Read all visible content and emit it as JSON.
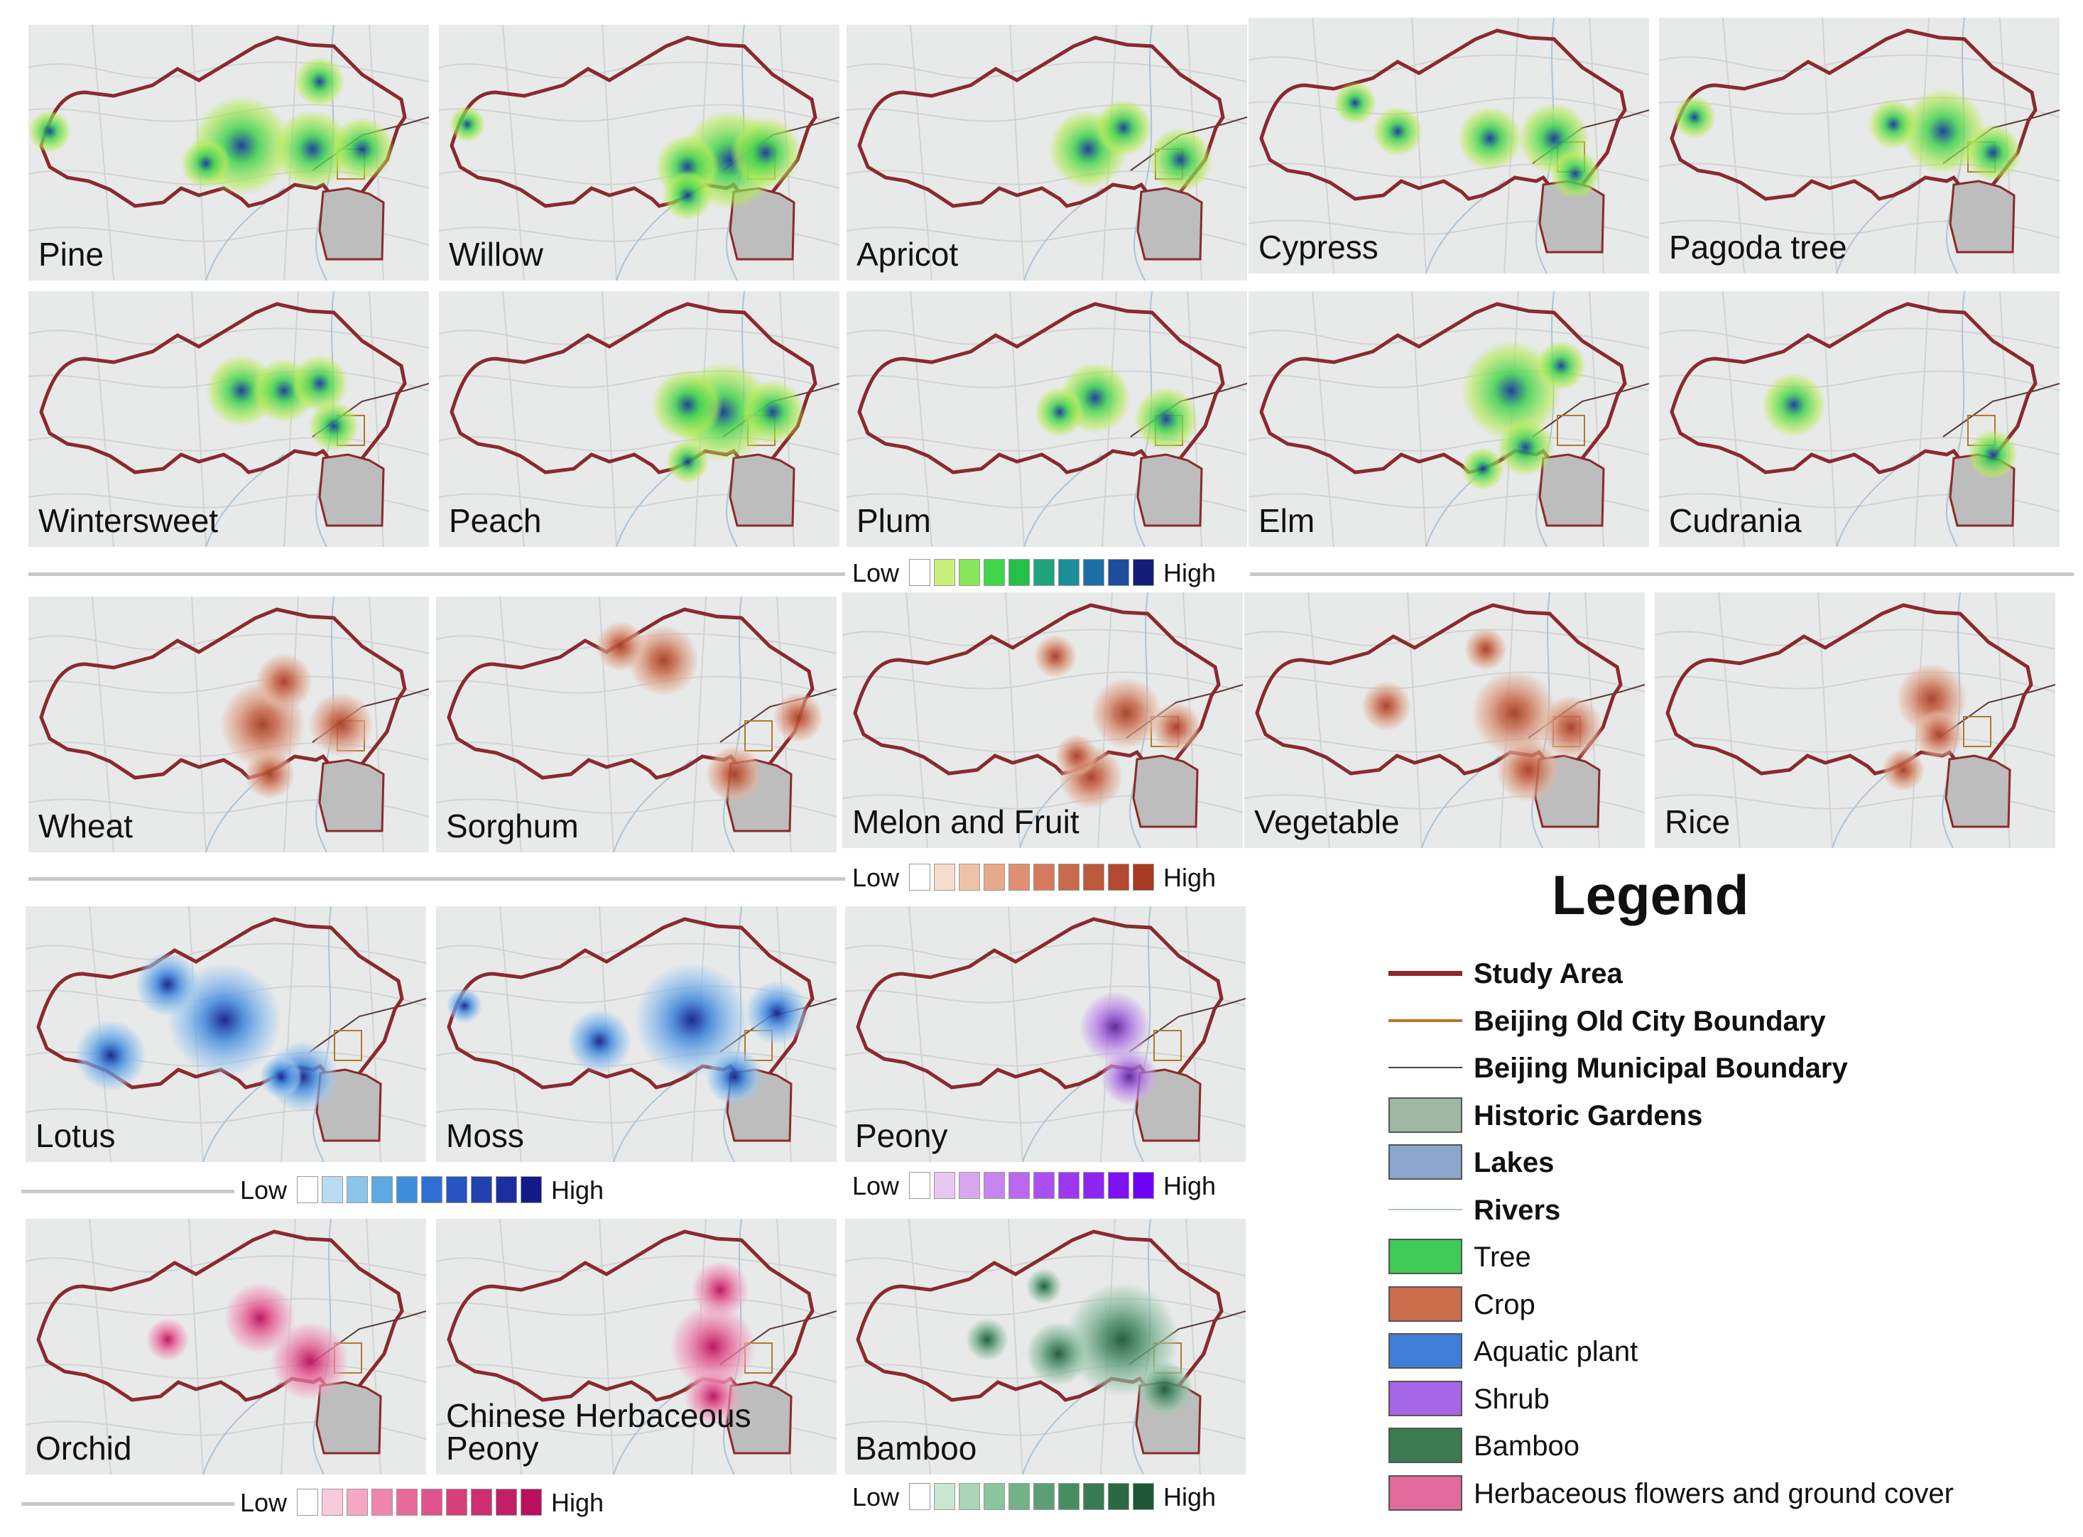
{
  "colors": {
    "study_area": "#8a2a2c",
    "old_city": "#b07a2a",
    "municipal": "#5a3a3a",
    "garden": "#9fb8a3",
    "lake": "#8aa6cc",
    "river": "#a9c4d8",
    "tree": "#3fc955",
    "crop": "#cc6e4c",
    "aquatic": "#3f7ed8",
    "shrub": "#a566e8",
    "bamboo": "#3c7a52",
    "herb": "#e06b9a"
  },
  "panels": [
    {
      "label": "Pine",
      "palette": "green"
    },
    {
      "label": "Willow",
      "palette": "green"
    },
    {
      "label": "Apricot",
      "palette": "green"
    },
    {
      "label": "Cypress",
      "palette": "green"
    },
    {
      "label": "Pagoda tree",
      "palette": "green"
    },
    {
      "label": "Wintersweet",
      "palette": "green"
    },
    {
      "label": "Peach",
      "palette": "green"
    },
    {
      "label": "Plum",
      "palette": "green"
    },
    {
      "label": "Elm",
      "palette": "green"
    },
    {
      "label": "Cudrania",
      "palette": "green"
    },
    {
      "label": "Wheat",
      "palette": "crop"
    },
    {
      "label": "Sorghum",
      "palette": "crop"
    },
    {
      "label": "Melon and Fruit",
      "palette": "crop"
    },
    {
      "label": "Vegetable",
      "palette": "crop"
    },
    {
      "label": "Rice",
      "palette": "crop"
    },
    {
      "label": "Lotus",
      "palette": "blue"
    },
    {
      "label": "Moss",
      "palette": "blue"
    },
    {
      "label": "Peony",
      "palette": "purple"
    },
    {
      "label": "Orchid",
      "palette": "pink"
    },
    {
      "label": "Chinese Herbaceous\nPeony",
      "palette": "pink"
    },
    {
      "label": "Bamboo",
      "palette": "bamboo"
    }
  ],
  "scales": [
    {
      "low": "Low",
      "high": "High",
      "colors": [
        "#ffffff",
        "#c9f07a",
        "#86e85a",
        "#3fd64a",
        "#25c04a",
        "#1fa37f",
        "#1a8f9a",
        "#1a6fa8",
        "#1d4b9e",
        "#141e78"
      ]
    },
    {
      "low": "Low",
      "high": "High",
      "colors": [
        "#ffffff",
        "#f7ddcc",
        "#efc2a8",
        "#e8a88a",
        "#de9073",
        "#d47b5e",
        "#c86a4c",
        "#bd5a3c",
        "#b24a2f",
        "#a63a22"
      ]
    },
    {
      "low": "Low",
      "high": "High",
      "colors": [
        "#ffffff",
        "#b9dcf2",
        "#8cc4ec",
        "#5ea8e4",
        "#3e8ede",
        "#2f6fd3",
        "#2654c2",
        "#2240b0",
        "#1d2ea0",
        "#141a8a"
      ]
    },
    {
      "low": "Low",
      "high": "High",
      "colors": [
        "#ffffff",
        "#e8c8f3",
        "#d8a6f0",
        "#c985ee",
        "#ba68ee",
        "#ab4ff0",
        "#9c38f0",
        "#8d24f2",
        "#7e12f4",
        "#7000f6"
      ]
    },
    {
      "low": "Low",
      "high": "High",
      "colors": [
        "#ffffff",
        "#f9cadb",
        "#f4a8c3",
        "#ee86ad",
        "#e86a9b",
        "#e0538a",
        "#d63f7c",
        "#cc2e70",
        "#c21f66",
        "#b8105c"
      ]
    },
    {
      "low": "Low",
      "high": "High",
      "colors": [
        "#ffffff",
        "#c8e6d0",
        "#a9d6b6",
        "#8cc59d",
        "#73b287",
        "#5c9f73",
        "#488c61",
        "#387a51",
        "#2a6943",
        "#1d5836"
      ]
    }
  ],
  "legend": {
    "title": "Legend",
    "items": [
      {
        "label": "Study Area",
        "symbol": "line-thick",
        "color_key": "study_area",
        "bold": true
      },
      {
        "label": "Beijing Old City Boundary",
        "symbol": "line-mid",
        "color_key": "old_city",
        "bold": true
      },
      {
        "label": "Beijing Municipal Boundary",
        "symbol": "line-thin",
        "color_key": "municipal",
        "bold": true
      },
      {
        "label": "Historic Gardens",
        "symbol": "box",
        "color_key": "garden",
        "bold": true
      },
      {
        "label": "Lakes",
        "symbol": "box",
        "color_key": "lake",
        "bold": true
      },
      {
        "label": "Rivers",
        "symbol": "line-hair",
        "color_key": "river",
        "bold": true
      },
      {
        "label": "Tree",
        "symbol": "box",
        "color_key": "tree",
        "bold": false
      },
      {
        "label": "Crop",
        "symbol": "box",
        "color_key": "crop",
        "bold": false
      },
      {
        "label": "Aquatic plant",
        "symbol": "box",
        "color_key": "aquatic",
        "bold": false
      },
      {
        "label": "Shrub",
        "symbol": "box",
        "color_key": "shrub",
        "bold": false
      },
      {
        "label": "Bamboo",
        "symbol": "box",
        "color_key": "bamboo",
        "bold": false
      },
      {
        "label": "Herbaceous flowers and ground cover",
        "symbol": "box",
        "color_key": "herb",
        "bold": false
      }
    ]
  }
}
